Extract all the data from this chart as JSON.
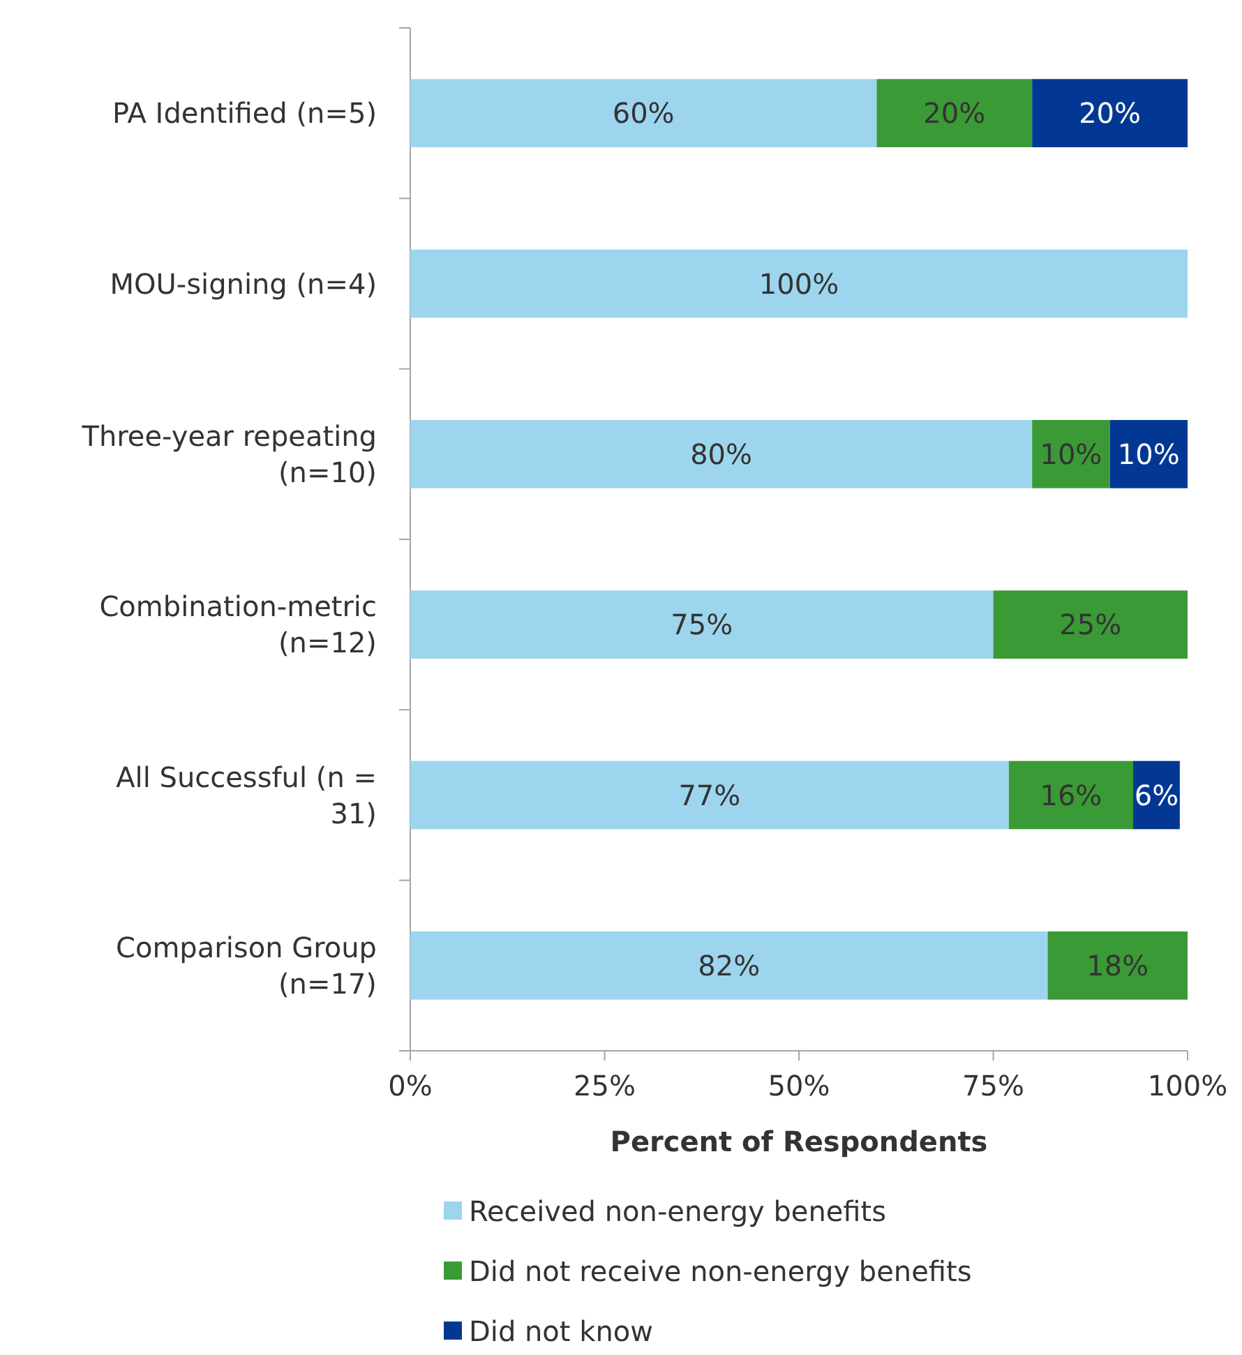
{
  "chart_data": {
    "type": "bar",
    "orientation": "horizontal",
    "stacked": true,
    "xlabel": "Percent of Respondents",
    "categories": [
      "PA Identified (n=5)",
      "MOU-signing (n=4)",
      "Three-year repeating (n=10)",
      "Combination-metric (n=12)",
      "All Successful (n = 31)",
      "Comparison Group (n=17)"
    ],
    "series": [
      {
        "name": "Received non-energy benefits",
        "color": "#9dd5ee",
        "values": [
          60,
          100,
          80,
          75,
          77,
          82
        ],
        "value_labels": [
          "60%",
          "100%",
          "80%",
          "75%",
          "77%",
          "82%"
        ]
      },
      {
        "name": "Did not receive non-energy benefits",
        "color": "#3a9a35",
        "values": [
          20,
          null,
          10,
          25,
          16,
          18
        ],
        "value_labels": [
          "20%",
          null,
          "10%",
          "25%",
          "16%",
          "18%"
        ]
      },
      {
        "name": "Did not know",
        "color": "#023894",
        "values": [
          20,
          null,
          10,
          null,
          6,
          null
        ],
        "value_labels": [
          "20%",
          null,
          "10%",
          null,
          "6%",
          null
        ]
      }
    ],
    "xlim": [
      0,
      100
    ],
    "xticks": [
      {
        "value": 0,
        "label": "0%"
      },
      {
        "value": 25,
        "label": "25%"
      },
      {
        "value": 50,
        "label": "50%"
      },
      {
        "value": 75,
        "label": "75%"
      },
      {
        "value": 100,
        "label": "100%"
      }
    ],
    "legend": "bottom"
  }
}
